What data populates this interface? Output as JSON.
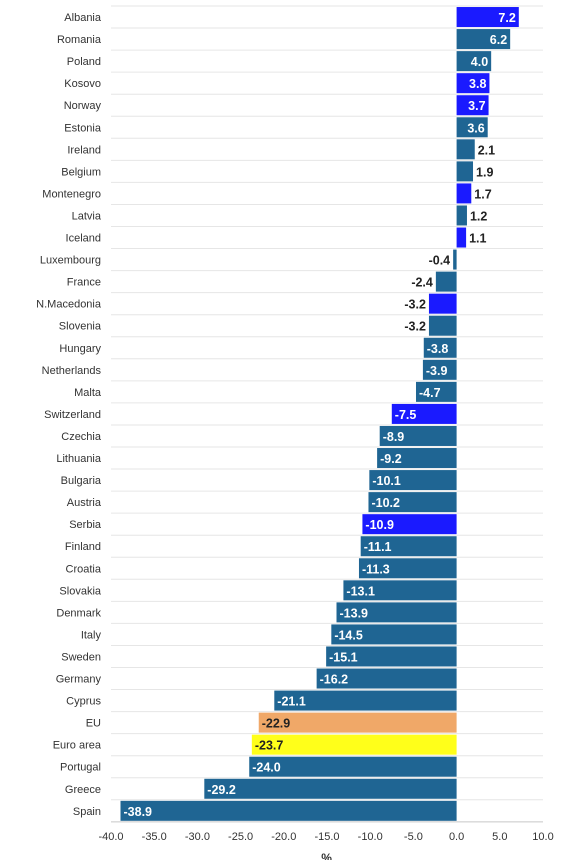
{
  "chart_data": {
    "type": "bar",
    "orientation": "horizontal",
    "categories": [
      "Albania",
      "Romania",
      "Poland",
      "Kosovo",
      "Norway",
      "Estonia",
      "Ireland",
      "Belgium",
      "Montenegro",
      "Latvia",
      "Iceland",
      "Luxembourg",
      "France",
      "N.Macedonia",
      "Slovenia",
      "Hungary",
      "Netherlands",
      "Malta",
      "Switzerland",
      "Czechia",
      "Lithuania",
      "Bulgaria",
      "Austria",
      "Serbia",
      "Finland",
      "Croatia",
      "Slovakia",
      "Denmark",
      "Italy",
      "Sweden",
      "Germany",
      "Cyprus",
      "EU",
      "Euro area",
      "Portugal",
      "Greece",
      "Spain"
    ],
    "values": [
      7.2,
      6.2,
      4.0,
      3.8,
      3.7,
      3.6,
      2.1,
      1.9,
      1.7,
      1.2,
      1.1,
      -0.4,
      -2.4,
      -3.2,
      -3.2,
      -3.8,
      -3.9,
      -4.7,
      -7.5,
      -8.9,
      -9.2,
      -10.1,
      -10.2,
      -10.9,
      -11.1,
      -11.3,
      -13.1,
      -13.9,
      -14.5,
      -15.1,
      -16.2,
      -21.1,
      -22.9,
      -23.7,
      -24.0,
      -29.2,
      -38.9
    ],
    "value_labels": [
      "7.2",
      "6.2",
      "4.0",
      "3.8",
      "3.7",
      "3.6",
      "2.1",
      "1.9",
      "1.7",
      "1.2",
      "1.1",
      "-0.4",
      "-2.4",
      "-3.2",
      "-3.2",
      "-3.8",
      "-3.9",
      "-4.7",
      "-7.5",
      "-8.9",
      "-9.2",
      "-10.1",
      "-10.2",
      "-10.9",
      "-11.1",
      "-11.3",
      "-13.1",
      "-13.9",
      "-14.5",
      "-15.1",
      "-16.2",
      "-21.1",
      "-22.9",
      "-23.7",
      "-24.0",
      "-29.2",
      "-38.9"
    ],
    "bar_colors": [
      "#1a1aff",
      "#1f6593",
      "#1f6593",
      "#1a1aff",
      "#1a1aff",
      "#1f6593",
      "#1f6593",
      "#1f6593",
      "#1a1aff",
      "#1f6593",
      "#1a1aff",
      "#1f6593",
      "#1f6593",
      "#1a1aff",
      "#1f6593",
      "#1f6593",
      "#1f6593",
      "#1f6593",
      "#1a1aff",
      "#1f6593",
      "#1f6593",
      "#1f6593",
      "#1f6593",
      "#1a1aff",
      "#1f6593",
      "#1f6593",
      "#1f6593",
      "#1f6593",
      "#1f6593",
      "#1f6593",
      "#1f6593",
      "#1f6593",
      "#f0a868",
      "#ffff1a",
      "#1f6593",
      "#1f6593",
      "#1f6593"
    ],
    "label_inside": [
      true,
      true,
      true,
      true,
      true,
      true,
      false,
      false,
      false,
      false,
      false,
      false,
      false,
      false,
      false,
      true,
      true,
      true,
      true,
      true,
      true,
      true,
      true,
      true,
      true,
      true,
      true,
      true,
      true,
      true,
      true,
      true,
      true,
      true,
      true,
      true,
      true
    ],
    "label_inside_color": [
      "#ffffff",
      "#ffffff",
      "#ffffff",
      "#ffffff",
      "#ffffff",
      "#ffffff",
      "",
      "",
      "",
      "",
      "",
      "",
      "",
      "",
      "",
      "#ffffff",
      "#ffffff",
      "#ffffff",
      "#ffffff",
      "#ffffff",
      "#ffffff",
      "#ffffff",
      "#ffffff",
      "#ffffff",
      "#ffffff",
      "#ffffff",
      "#ffffff",
      "#ffffff",
      "#ffffff",
      "#ffffff",
      "#ffffff",
      "#ffffff",
      "#222222",
      "#222222",
      "#ffffff",
      "#ffffff",
      "#ffffff"
    ],
    "xlim": [
      -40,
      10
    ],
    "xticks": [
      -40,
      -35,
      -30,
      -25,
      -20,
      -15,
      -10,
      -5,
      0,
      5,
      10
    ],
    "xtick_labels": [
      "-40.0",
      "-35.0",
      "-30.0",
      "-25.0",
      "-20.0",
      "-15.0",
      "-10.0",
      "-5.0",
      "0.0",
      "5.0",
      "10.0"
    ],
    "xlabel": "%",
    "grid": true,
    "colors": {
      "default_bar": "#1f6593",
      "highlight_bar": "#1a1aff",
      "eu_bar": "#f0a868",
      "euro_area_bar": "#ffff1a",
      "outside_label": "#222222",
      "grid": "#e6e6e6"
    }
  }
}
